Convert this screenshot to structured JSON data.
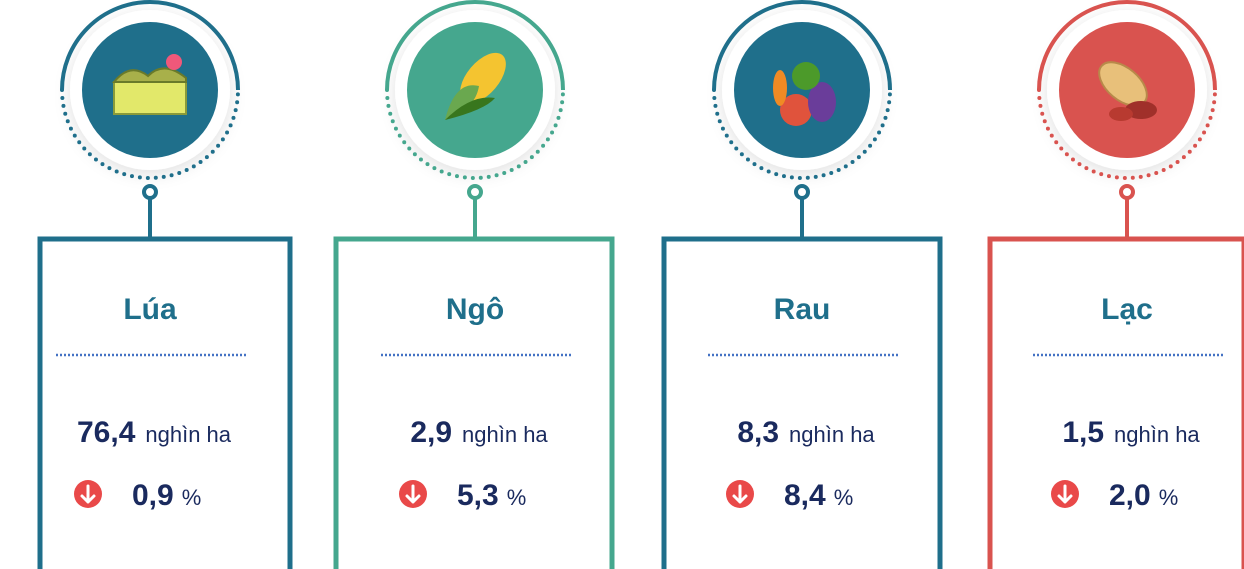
{
  "cards": [
    {
      "name": "Lúa",
      "value": "76,4",
      "unit": "nghìn ha",
      "change": "0,9",
      "change_unit": "%",
      "color": "#1f6f8b"
    },
    {
      "name": "Ngô",
      "value": "2,9",
      "unit": "nghìn ha",
      "change": "5,3",
      "change_unit": "%",
      "color": "#45a78e"
    },
    {
      "name": "Rau",
      "value": "8,3",
      "unit": "nghìn ha",
      "change": "8,4",
      "change_unit": "%",
      "color": "#1f6f8b"
    },
    {
      "name": "Lạc",
      "value": "1,5",
      "unit": "nghìn ha",
      "change": "2,0",
      "change_unit": "%",
      "color": "#d9534f"
    }
  ]
}
